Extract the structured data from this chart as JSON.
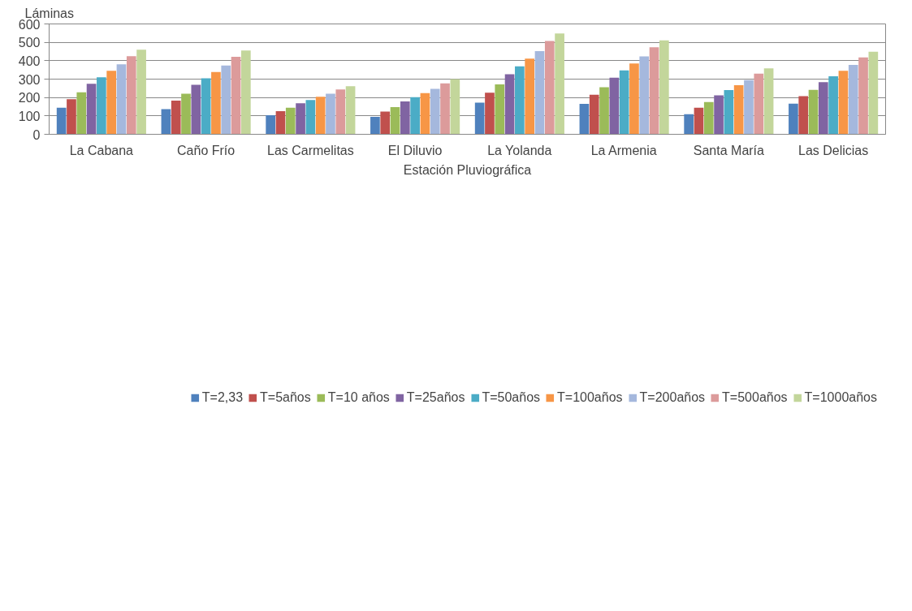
{
  "chart_data": {
    "type": "bar",
    "xlabel": "Estación Pluviográfica",
    "ylabel": "Láminas",
    "categories": [
      "La Cabana",
      "Caño Frío",
      "Las Carmelitas",
      "El Diluvio",
      "La Yolanda",
      "La Armenia",
      "Santa María",
      "Las Delicias"
    ],
    "series": [
      {
        "name": "T=2,33",
        "color": "#4f81bd",
        "values": [
          145,
          137,
          104,
          95,
          172,
          165,
          109,
          167
        ]
      },
      {
        "name": "T=5años",
        "color": "#c0504d",
        "values": [
          191,
          183,
          126,
          124,
          226,
          215,
          145,
          207
        ]
      },
      {
        "name": "T=10 años",
        "color": "#9bbb59",
        "values": [
          228,
          221,
          145,
          148,
          271,
          256,
          175,
          241
        ]
      },
      {
        "name": "T=25años",
        "color": "#8064a2",
        "values": [
          275,
          269,
          169,
          179,
          327,
          308,
          212,
          283
        ]
      },
      {
        "name": "T=50años",
        "color": "#4bacc6",
        "values": [
          310,
          304,
          186,
          202,
          369,
          347,
          240,
          315
        ]
      },
      {
        "name": "T=100años",
        "color": "#f79646",
        "values": [
          345,
          339,
          204,
          224,
          411,
          385,
          267,
          345
        ]
      },
      {
        "name": "T=200años",
        "color": "#a5b8dd",
        "values": [
          380,
          374,
          221,
          247,
          452,
          423,
          294,
          377
        ]
      },
      {
        "name": "T=500años",
        "color": "#dc9b9b",
        "values": [
          425,
          421,
          244,
          277,
          507,
          473,
          330,
          418
        ]
      },
      {
        "name": "T=1000años",
        "color": "#c3d69b",
        "values": [
          460,
          456,
          261,
          300,
          548,
          511,
          358,
          449
        ]
      }
    ],
    "ylim": [
      0,
      600
    ],
    "yticks": [
      0,
      100,
      200,
      300,
      400,
      500,
      600
    ],
    "grid": "y",
    "legend": "bottom"
  }
}
